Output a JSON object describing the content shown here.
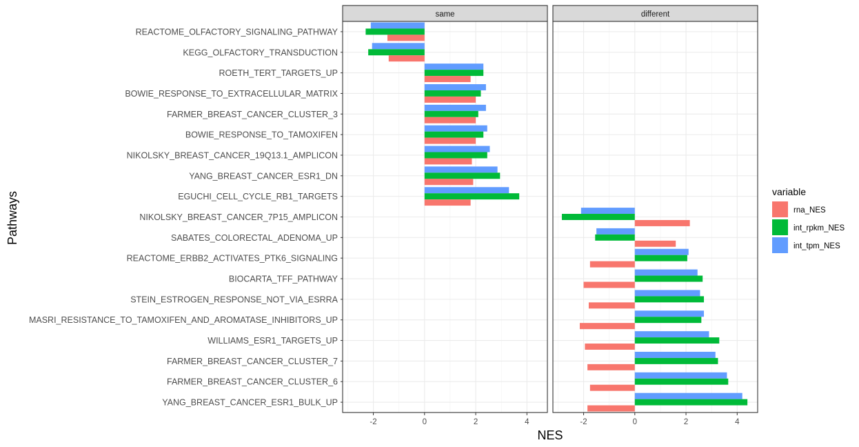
{
  "chart_data": {
    "type": "bar",
    "orientation": "horizontal",
    "layout": "faceted",
    "xlabel": "NES",
    "ylabel": "Pathways",
    "xlim": [
      -3.2,
      4.8
    ],
    "xticks": [
      -2,
      0,
      2,
      4
    ],
    "grid": true,
    "legend": {
      "title": "variable",
      "position": "right",
      "entries": [
        {
          "name": "rna_NES",
          "color": "#F8766D"
        },
        {
          "name": "int_rpkm_NES",
          "color": "#00BA38"
        },
        {
          "name": "int_tpm_NES",
          "color": "#619CFF"
        }
      ]
    },
    "categories": [
      "REACTOME_OLFACTORY_SIGNALING_PATHWAY",
      "KEGG_OLFACTORY_TRANSDUCTION",
      "ROETH_TERT_TARGETS_UP",
      "BOWIE_RESPONSE_TO_EXTRACELLULAR_MATRIX",
      "FARMER_BREAST_CANCER_CLUSTER_3",
      "BOWIE_RESPONSE_TO_TAMOXIFEN",
      "NIKOLSKY_BREAST_CANCER_19Q13.1_AMPLICON",
      "YANG_BREAST_CANCER_ESR1_DN",
      "EGUCHI_CELL_CYCLE_RB1_TARGETS",
      "NIKOLSKY_BREAST_CANCER_7P15_AMPLICON",
      "SABATES_COLORECTAL_ADENOMA_UP",
      "REACTOME_ERBB2_ACTIVATES_PTK6_SIGNALING",
      "BIOCARTA_TFF_PATHWAY",
      "STEIN_ESTROGEN_RESPONSE_NOT_VIA_ESRRA",
      "MASRI_RESISTANCE_TO_TAMOXIFEN_AND_AROMATASE_INHIBITORS_UP",
      "WILLIAMS_ESR1_TARGETS_UP",
      "FARMER_BREAST_CANCER_CLUSTER_7",
      "FARMER_BREAST_CANCER_CLUSTER_6",
      "YANG_BREAST_CANCER_ESR1_BULK_UP"
    ],
    "panels": [
      {
        "title": "same",
        "categories": [
          "REACTOME_OLFACTORY_SIGNALING_PATHWAY",
          "KEGG_OLFACTORY_TRANSDUCTION",
          "ROETH_TERT_TARGETS_UP",
          "BOWIE_RESPONSE_TO_EXTRACELLULAR_MATRIX",
          "FARMER_BREAST_CANCER_CLUSTER_3",
          "BOWIE_RESPONSE_TO_TAMOXIFEN",
          "NIKOLSKY_BREAST_CANCER_19Q13.1_AMPLICON",
          "YANG_BREAST_CANCER_ESR1_DN",
          "EGUCHI_CELL_CYCLE_RB1_TARGETS"
        ],
        "series": [
          {
            "name": "rna_NES",
            "values": [
              -1.45,
              -1.4,
              1.8,
              2.0,
              2.0,
              2.0,
              1.85,
              1.9,
              1.8
            ]
          },
          {
            "name": "int_rpkm_NES",
            "values": [
              -2.3,
              -2.2,
              2.3,
              2.2,
              2.1,
              2.3,
              2.45,
              2.95,
              3.7
            ]
          },
          {
            "name": "int_tpm_NES",
            "values": [
              -2.1,
              -2.05,
              2.3,
              2.4,
              2.4,
              2.45,
              2.55,
              2.85,
              3.3
            ]
          }
        ]
      },
      {
        "title": "different",
        "categories": [
          "NIKOLSKY_BREAST_CANCER_7P15_AMPLICON",
          "SABATES_COLORECTAL_ADENOMA_UP",
          "REACTOME_ERBB2_ACTIVATES_PTK6_SIGNALING",
          "BIOCARTA_TFF_PATHWAY",
          "STEIN_ESTROGEN_RESPONSE_NOT_VIA_ESRRA",
          "MASRI_RESISTANCE_TO_TAMOXIFEN_AND_AROMATASE_INHIBITORS_UP",
          "WILLIAMS_ESR1_TARGETS_UP",
          "FARMER_BREAST_CANCER_CLUSTER_7",
          "FARMER_BREAST_CANCER_CLUSTER_6",
          "YANG_BREAST_CANCER_ESR1_BULK_UP"
        ],
        "series": [
          {
            "name": "rna_NES",
            "values": [
              2.15,
              1.6,
              -1.75,
              -2.0,
              -1.8,
              -2.15,
              -1.95,
              -1.85,
              -1.75,
              -1.85
            ]
          },
          {
            "name": "int_rpkm_NES",
            "values": [
              -2.85,
              -1.55,
              2.05,
              2.65,
              2.7,
              2.6,
              3.3,
              3.25,
              3.65,
              4.4
            ]
          },
          {
            "name": "int_tpm_NES",
            "values": [
              -2.1,
              -1.5,
              2.1,
              2.45,
              2.55,
              2.7,
              2.9,
              3.15,
              3.6,
              4.2
            ]
          }
        ]
      }
    ]
  }
}
